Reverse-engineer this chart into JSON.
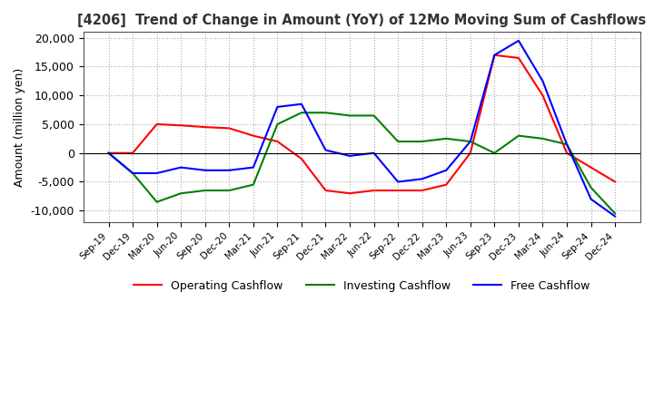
{
  "title": "[4206]  Trend of Change in Amount (YoY) of 12Mo Moving Sum of Cashflows",
  "ylabel": "Amount (million yen)",
  "ylim": [
    -12000,
    21000
  ],
  "yticks": [
    -10000,
    -5000,
    0,
    5000,
    10000,
    15000,
    20000
  ],
  "x_labels": [
    "Sep-19",
    "Dec-19",
    "Mar-20",
    "Jun-20",
    "Sep-20",
    "Dec-20",
    "Mar-21",
    "Jun-21",
    "Sep-21",
    "Dec-21",
    "Mar-22",
    "Jun-22",
    "Sep-22",
    "Dec-22",
    "Mar-23",
    "Jun-23",
    "Sep-23",
    "Dec-23",
    "Mar-24",
    "Jun-24",
    "Sep-24",
    "Dec-24"
  ],
  "operating": [
    0,
    0,
    5000,
    4800,
    4500,
    4300,
    3000,
    2000,
    -1000,
    -6500,
    -7000,
    -6500,
    -6500,
    -6500,
    -5500,
    0,
    17000,
    16500,
    10000,
    0,
    -2500,
    -5000
  ],
  "investing": [
    0,
    -3500,
    -8500,
    -7000,
    -6500,
    -6500,
    -5500,
    5000,
    7000,
    7000,
    6500,
    6500,
    2000,
    2000,
    2500,
    2000,
    0,
    3000,
    2500,
    1500,
    -6000,
    -10500
  ],
  "free": [
    0,
    -3500,
    -3500,
    -2500,
    -3000,
    -3000,
    -2500,
    8000,
    8500,
    500,
    -500,
    0,
    -5000,
    -4500,
    -3000,
    2000,
    17000,
    19500,
    12500,
    1500,
    -8000,
    -11000
  ],
  "colors": {
    "operating": "#ff0000",
    "investing": "#008000",
    "free": "#0000ff"
  },
  "legend_labels": [
    "Operating Cashflow",
    "Investing Cashflow",
    "Free Cashflow"
  ]
}
